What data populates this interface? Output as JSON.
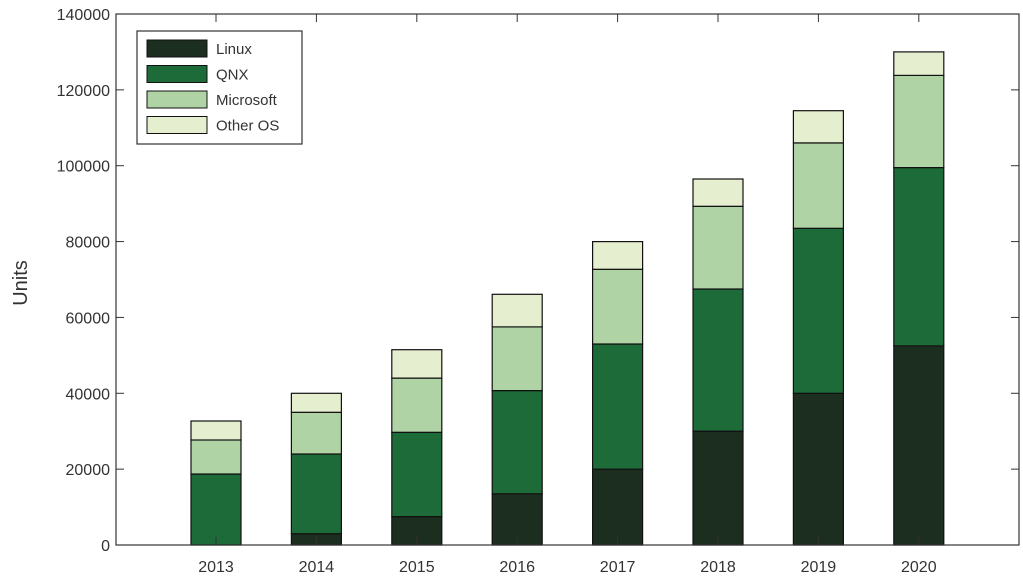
{
  "chart_data": {
    "type": "bar",
    "stacked": true,
    "categories": [
      "2013",
      "2014",
      "2015",
      "2016",
      "2017",
      "2018",
      "2019",
      "2020"
    ],
    "series": [
      {
        "name": "Linux",
        "color": "#1c2e1f",
        "values": [
          0,
          3000,
          7500,
          13500,
          20000,
          30000,
          40000,
          52500
        ]
      },
      {
        "name": "QNX",
        "color": "#1d6b38",
        "values": [
          18700,
          21000,
          22200,
          27200,
          33000,
          37500,
          43500,
          47000
        ]
      },
      {
        "name": "Microsoft",
        "color": "#b0d3a5",
        "values": [
          9000,
          11000,
          14300,
          16800,
          19700,
          21800,
          22500,
          24300
        ]
      },
      {
        "name": "Other OS",
        "color": "#e5efcf",
        "values": [
          5000,
          5000,
          7500,
          8600,
          7300,
          7200,
          8500,
          6200
        ]
      }
    ],
    "title": "",
    "xlabel": "",
    "ylabel": "Units",
    "ylim": [
      0,
      140000
    ],
    "yticks": [
      "0",
      "20000",
      "40000",
      "60000",
      "80000",
      "100000",
      "120000",
      "140000"
    ],
    "grid": false,
    "legend_position": "top-left"
  }
}
